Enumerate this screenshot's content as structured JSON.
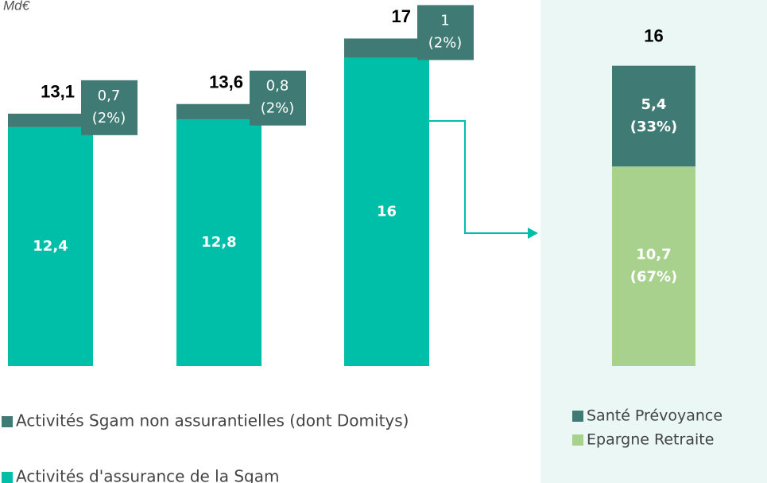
{
  "chart_data": [
    {
      "type": "stacked-bar",
      "unit": "Md€",
      "categories": [
        null,
        null,
        null
      ],
      "ylim": [
        0,
        19
      ],
      "series": [
        {
          "name": "Activités d'assurance de la Sgam",
          "color": "#00bfa8",
          "values": [
            12.4,
            12.8,
            16
          ],
          "value_labels": [
            "12,4",
            "12,8",
            "16"
          ]
        },
        {
          "name": "Activités Sgam non assurantielles (dont Domitys)",
          "color": "#3f7b74",
          "values": [
            0.7,
            0.8,
            1
          ],
          "value_labels": [
            "0,7",
            "0,8",
            "1"
          ],
          "shares": [
            "(2%)",
            "(2%)",
            "(2%)"
          ]
        }
      ],
      "totals": [
        13.1,
        13.6,
        17
      ],
      "total_labels": [
        "13,1",
        "13,6",
        "17"
      ]
    },
    {
      "type": "stacked-bar",
      "background": "#eaf7f5",
      "categories": [
        null
      ],
      "ylim": [
        0,
        16
      ],
      "series": [
        {
          "name": "Epargne Retraite",
          "color": "#a9d18e",
          "values": [
            10.7
          ],
          "value_labels": [
            "10,7"
          ],
          "shares": [
            "(67%)"
          ]
        },
        {
          "name": "Santé Prévoyance",
          "color": "#3f7b74",
          "values": [
            5.4
          ],
          "value_labels": [
            "5,4"
          ],
          "shares": [
            "(33%)"
          ]
        }
      ],
      "totals": [
        16
      ],
      "total_labels": [
        "16"
      ]
    }
  ]
}
